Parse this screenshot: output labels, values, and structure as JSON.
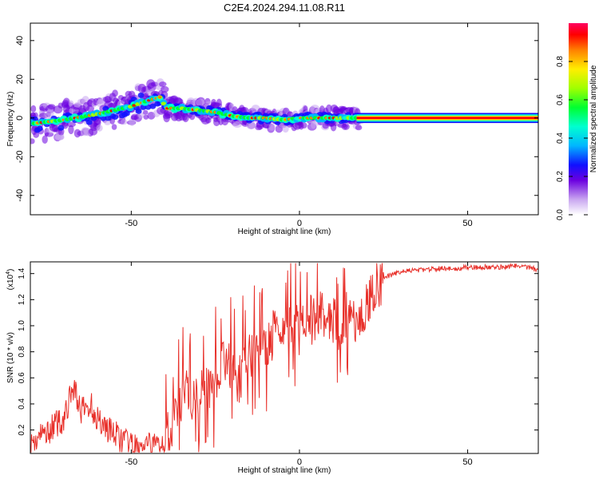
{
  "chart_data": [
    {
      "type": "heatmap",
      "title": "C2E4.2024.294.11.08.R11",
      "xlabel": "Height of straight line (km)",
      "ylabel": "Frequency (Hz)",
      "xlim": [
        -80,
        71
      ],
      "ylim": [
        -50,
        49
      ],
      "x_ticks": [
        -50,
        0,
        50
      ],
      "y_ticks": [
        -40,
        -20,
        0,
        20,
        40
      ],
      "colorbar": {
        "label": "Normalized spectral amplitude",
        "range": [
          0,
          1
        ],
        "ticks": [
          "0.0",
          "0.2",
          "0.4",
          "0.6",
          "0.8"
        ]
      },
      "ridge": {
        "description_points_x": [
          -80,
          -70,
          -60,
          -50,
          -45,
          -41,
          -40,
          -35,
          -30,
          -25,
          -20,
          -15,
          -10,
          -5,
          0,
          5,
          10,
          15,
          20,
          71
        ],
        "description_points_freq": [
          -3,
          -1,
          2,
          6,
          9,
          11,
          5,
          5,
          4,
          3,
          1,
          0,
          0,
          -1,
          0,
          0,
          0,
          0,
          0,
          0
        ]
      },
      "grid": false
    },
    {
      "type": "line",
      "title": "",
      "xlabel": "Height of straight line (km)",
      "ylabel": "SNR (10 * v/v)",
      "y_multiplier": "(x10",
      "y_multiplier_exp": "4",
      "y_multiplier_close": ")",
      "xlim": [
        -80,
        71
      ],
      "ylim": [
        0.02,
        1.49
      ],
      "x_ticks": [
        -50,
        0,
        50
      ],
      "y_ticks": [
        0.2,
        0.4,
        0.6,
        0.8,
        1.0,
        1.2,
        1.4
      ],
      "y_tick_labels": [
        "0.2",
        "0.4",
        "0.6",
        "0.8",
        "1.0",
        "1.2",
        "1.4"
      ],
      "series": [
        {
          "color": "#e8302a",
          "x": [
            -80,
            -75,
            -70,
            -67,
            -65,
            -62,
            -60,
            -58,
            -55,
            -52,
            -50,
            -47,
            -45,
            -42,
            -40,
            -38,
            -36,
            -34,
            -32,
            -30,
            -28,
            -26,
            -24,
            -22,
            -20,
            -18,
            -16,
            -14,
            -12,
            -10,
            -8,
            -6,
            -4,
            -2,
            0,
            2,
            4,
            6,
            8,
            10,
            12,
            14,
            16,
            18,
            20,
            22,
            24,
            26,
            28,
            30,
            35,
            40,
            45,
            50,
            55,
            60,
            65,
            68,
            71
          ],
          "y": [
            0.1,
            0.2,
            0.3,
            0.55,
            0.35,
            0.4,
            0.3,
            0.25,
            0.18,
            0.12,
            0.08,
            0.07,
            0.08,
            0.1,
            0.15,
            0.25,
            0.4,
            0.55,
            0.45,
            0.5,
            0.55,
            0.5,
            0.7,
            0.75,
            0.65,
            0.6,
            0.75,
            0.8,
            0.85,
            0.8,
            0.95,
            1.0,
            0.9,
            1.05,
            0.95,
            1.1,
            1.05,
            1.15,
            1.1,
            1.05,
            1.0,
            1.1,
            1.05,
            1.1,
            1.2,
            1.3,
            1.35,
            1.38,
            1.4,
            1.42,
            1.43,
            1.44,
            1.44,
            1.45,
            1.45,
            1.45,
            1.46,
            1.45,
            1.43
          ]
        }
      ],
      "grid": false
    }
  ]
}
